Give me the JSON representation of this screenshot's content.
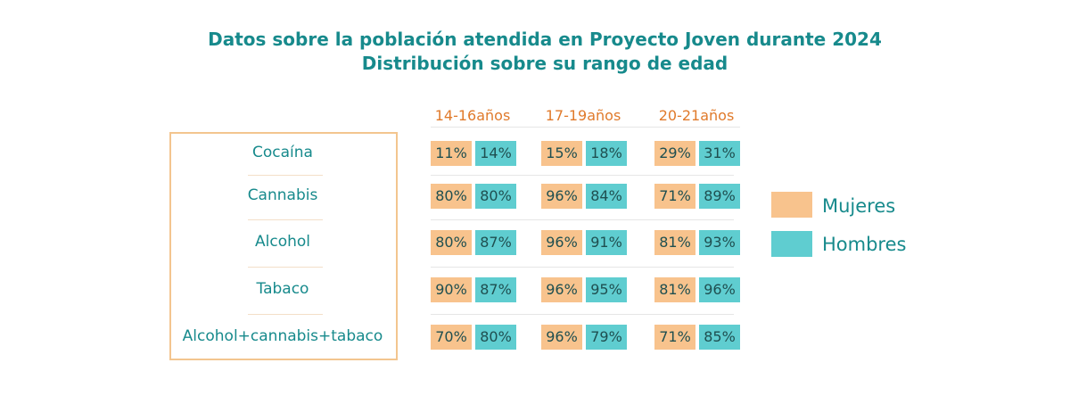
{
  "header": {
    "title": "Datos sobre la población atendida en Proyecto Joven durante 2024",
    "subtitle": "Distribución sobre su rango de edad"
  },
  "columns": [
    {
      "range": "14-16",
      "unit": "años"
    },
    {
      "range": "17-19",
      "unit": "años"
    },
    {
      "range": "20-21",
      "unit": "años"
    }
  ],
  "rows": [
    {
      "label": "Cocaína",
      "cells": [
        [
          "11%",
          "14%"
        ],
        [
          "15%",
          "18%"
        ],
        [
          "29%",
          "31%"
        ]
      ]
    },
    {
      "label": "Cannabis",
      "cells": [
        [
          "80%",
          "80%"
        ],
        [
          "96%",
          "84%"
        ],
        [
          "71%",
          "89%"
        ]
      ]
    },
    {
      "label": "Alcohol",
      "cells": [
        [
          "80%",
          "87%"
        ],
        [
          "96%",
          "91%"
        ],
        [
          "81%",
          "93%"
        ]
      ]
    },
    {
      "label": "Tabaco",
      "cells": [
        [
          "90%",
          "87%"
        ],
        [
          "96%",
          "95%"
        ],
        [
          "81%",
          "96%"
        ]
      ]
    },
    {
      "label": "Alcohol+cannabis+tabaco",
      "cells": [
        [
          "70%",
          "80%"
        ],
        [
          "96%",
          "79%"
        ],
        [
          "71%",
          "85%"
        ]
      ]
    }
  ],
  "legend": [
    {
      "label": "Mujeres",
      "color": "#f8c38d"
    },
    {
      "label": "Hombres",
      "color": "#5fcdd0"
    }
  ]
}
